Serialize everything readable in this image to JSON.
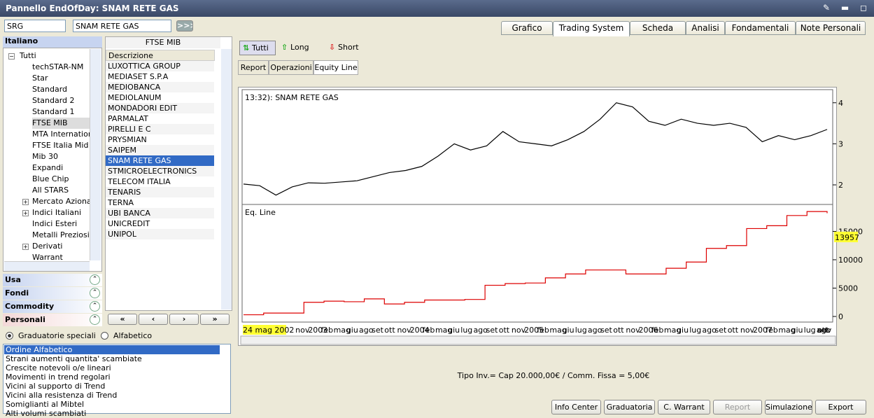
{
  "window_title": "Pannello EndOfDay: SNAM RETE GAS",
  "search": {
    "code": "SRG",
    "name": "SNAM RETE GAS",
    "go": ">>>"
  },
  "tabs": [
    "Grafico",
    "Trading System",
    "Scheda",
    "Analisi",
    "Fondamentali",
    "Note Personali"
  ],
  "left": {
    "header": "Italiano",
    "tree": [
      "Tutti",
      "techSTAR-NM",
      "Star",
      "Standard",
      "Standard 2",
      "Standard 1",
      "FTSE MIB",
      "MTA Internationa",
      "FTSE Italia Mid C",
      "Mib 30",
      "Expandi",
      "Blue Chip",
      "All STARS",
      "Mercato Azionari",
      "Indici Italiani",
      "Indici Esteri",
      "Metalli Preziosi",
      "Derivati",
      "Warrant"
    ],
    "sections": [
      "Usa",
      "Fondi",
      "Commodity",
      "Personali"
    ]
  },
  "middle": {
    "header": "FTSE MIB",
    "column": "Descrizione",
    "items": [
      "LUXOTTICA GROUP",
      "MEDIASET S.P.A",
      "MEDIOBANCA",
      "MEDIOLANUM",
      "MONDADORI EDIT",
      "PARMALAT",
      "PIRELLI E C",
      "PRYSMIAN",
      "SAIPEM",
      "SNAM RETE GAS",
      "STMICROELECTRONICS",
      "TELECOM ITALIA",
      "TENARIS",
      "TERNA",
      "UBI BANCA",
      "UNICREDIT",
      "UNIPOL"
    ],
    "nav": [
      "«",
      "‹",
      "›",
      "»"
    ]
  },
  "ranking": {
    "options": [
      "Graduatorie speciali",
      "Alfabetico"
    ],
    "items": [
      "Ordine Alfabetico",
      "Strani aumenti quantita' scambiate",
      "Crescite notevoli o/e lineari",
      "Movimenti in trend regolari",
      "Vicini al supporto di Trend",
      "Vicini alla resistenza di Trend",
      "Somiglianti al Mibtel",
      "Alti volumi scambiati"
    ]
  },
  "toolbar": [
    "Tutti",
    "Long",
    "Short"
  ],
  "subtabs": [
    "Report",
    "Operazioni",
    "Equity Line"
  ],
  "chart_data": [
    {
      "type": "line",
      "title": "13:32): SNAM RETE GAS",
      "color": "#000000",
      "values": [
        2.02,
        1.98,
        1.75,
        1.95,
        2.05,
        2.04,
        2.07,
        2.1,
        2.2,
        2.3,
        2.35,
        2.45,
        2.7,
        3.0,
        2.85,
        2.95,
        3.3,
        3.05,
        3.0,
        2.95,
        3.1,
        3.3,
        3.6,
        4.0,
        3.9,
        3.55,
        3.45,
        3.6,
        3.5,
        3.45,
        3.5,
        3.4,
        3.05,
        3.2,
        3.1,
        3.2,
        3.35
      ],
      "ylim": [
        1.54,
        4.32
      ],
      "yticks": [
        2,
        3,
        4
      ]
    },
    {
      "type": "line",
      "title": "Eq. Line",
      "color": "#dd0000",
      "annotation": 13957,
      "values": [
        300,
        600,
        600,
        2500,
        2700,
        2600,
        3100,
        2200,
        2500,
        2900,
        2900,
        3000,
        5500,
        5800,
        5900,
        6800,
        7500,
        8200,
        8200,
        7500,
        7500,
        8500,
        9600,
        12000,
        12500,
        15500,
        16000,
        17800,
        18500,
        18200
      ],
      "ylim": [
        -990,
        19750
      ],
      "yticks": [
        0,
        5000,
        10000,
        15000
      ],
      "x_labels": [
        "24 mag 2002",
        "nov",
        "2003",
        "feb",
        "mag",
        "giu",
        "ago",
        "set",
        "ott",
        "nov",
        "2004",
        "feb",
        "mag",
        "giu",
        "lug",
        "ago",
        "set",
        "ott",
        "nov",
        "2005",
        "feb",
        "mag",
        "giu",
        "lug",
        "ago",
        "set",
        "ott",
        "nov",
        "2006",
        "feb",
        "mag",
        "giu",
        "lug",
        "ago",
        "set",
        "ott",
        "nov",
        "2007",
        "feb",
        "mag",
        "giu",
        "lug",
        "ago",
        "set",
        "ott",
        "nov"
      ]
    }
  ],
  "footer": "Tipo Inv.= Cap 20.000,00€  / Comm. Fissa = 5,00€",
  "buttons": [
    "Info Center",
    "Graduatoria",
    "C. Warrant",
    "Report",
    "Simulazione",
    "Export"
  ]
}
